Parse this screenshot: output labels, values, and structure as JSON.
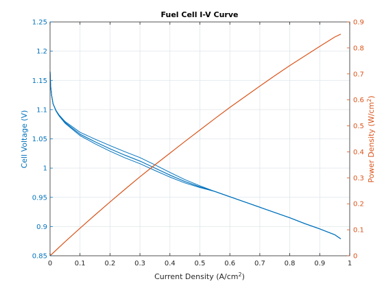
{
  "chart_data": {
    "type": "line",
    "title": "Fuel Cell I-V Curve",
    "xlabel": "Current Density (A/cm",
    "xlabel_sup": "2",
    "xlabel_close": ")",
    "ylabel_left": "Cell Voltage (V)",
    "ylabel_right": "Power Density (W/cm",
    "ylabel_right_sup": "2",
    "ylabel_right_close": ")",
    "xlim": [
      0,
      1
    ],
    "ylim_left": [
      0.85,
      1.25
    ],
    "ylim_right": [
      0,
      0.9
    ],
    "x_ticks": [
      "0",
      "0.1",
      "0.2",
      "0.3",
      "0.4",
      "0.5",
      "0.6",
      "0.7",
      "0.8",
      "0.9",
      "1"
    ],
    "y_left_ticks": [
      "0.85",
      "0.9",
      "0.95",
      "1",
      "1.05",
      "1.1",
      "1.15",
      "1.2",
      "1.25"
    ],
    "y_right_ticks": [
      "0",
      "0.1",
      "0.2",
      "0.3",
      "0.4",
      "0.5",
      "0.6",
      "0.7",
      "0.8",
      "0.9"
    ],
    "grid": true,
    "series": [
      {
        "axis": "left",
        "color": "#0072BD",
        "x": [
          0,
          0.002,
          0.005,
          0.01,
          0.02,
          0.03,
          0.05,
          0.07,
          0.1,
          0.15,
          0.2,
          0.25,
          0.3,
          0.35,
          0.4,
          0.45,
          0.5,
          0.55,
          0.6,
          0.65,
          0.7,
          0.75,
          0.8,
          0.85,
          0.9,
          0.95,
          0.97
        ],
        "values": [
          1.165,
          1.14,
          1.125,
          1.11,
          1.098,
          1.09,
          1.078,
          1.07,
          1.058,
          1.045,
          1.033,
          1.022,
          1.012,
          1.0,
          0.988,
          0.977,
          0.968,
          0.96,
          0.951,
          0.942,
          0.933,
          0.924,
          0.915,
          0.905,
          0.896,
          0.886,
          0.879
        ]
      },
      {
        "axis": "right",
        "color": "#D95319",
        "x": [
          0,
          0.05,
          0.1,
          0.15,
          0.2,
          0.25,
          0.3,
          0.35,
          0.4,
          0.45,
          0.5,
          0.55,
          0.6,
          0.65,
          0.7,
          0.75,
          0.8,
          0.85,
          0.9,
          0.95,
          0.97
        ],
        "values": [
          0,
          0.054,
          0.106,
          0.157,
          0.207,
          0.256,
          0.304,
          0.35,
          0.395,
          0.44,
          0.484,
          0.528,
          0.571,
          0.612,
          0.653,
          0.693,
          0.732,
          0.769,
          0.806,
          0.842,
          0.853
        ]
      }
    ]
  }
}
